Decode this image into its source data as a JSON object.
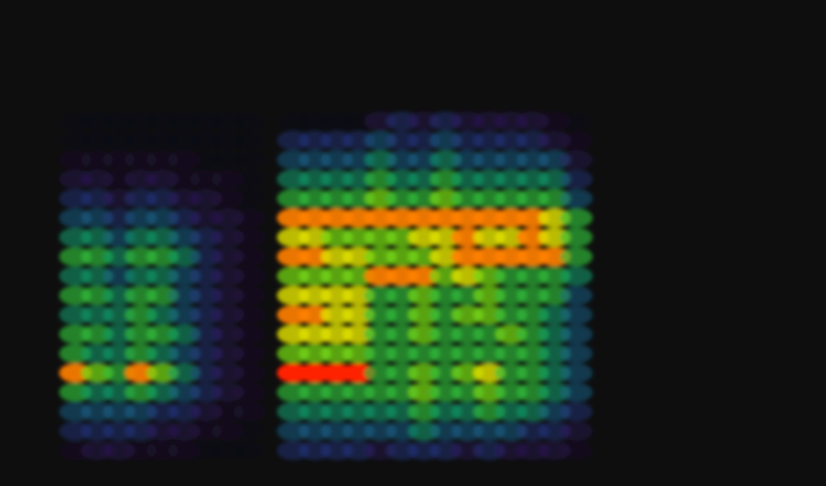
{
  "chart_data": {
    "type": "spectrogram",
    "tick_labels": false,
    "color_range": [
      0,
      10
    ],
    "cells": [
      [
        1,
        2,
        2,
        1,
        1,
        1,
        0,
        0,
        0,
        null,
        3,
        3,
        3,
        3,
        2,
        3,
        3,
        3,
        2,
        3,
        2,
        2,
        2,
        1
      ],
      [
        3,
        3,
        3,
        3,
        2,
        2,
        1,
        1,
        0,
        null,
        4,
        4,
        4,
        4,
        4,
        4,
        5,
        4,
        4,
        4,
        4,
        3,
        3,
        2
      ],
      [
        4,
        4,
        4,
        4,
        3,
        3,
        2,
        1,
        1,
        null,
        5,
        5,
        5,
        5,
        5,
        5,
        6,
        5,
        5,
        6,
        5,
        5,
        4,
        3
      ],
      [
        6,
        5,
        5,
        6,
        5,
        4,
        3,
        2,
        1,
        null,
        6,
        6,
        6,
        6,
        6,
        6,
        7,
        6,
        6,
        7,
        6,
        6,
        5,
        4
      ],
      [
        9,
        7,
        6,
        9,
        7,
        5,
        3,
        2,
        1,
        null,
        10,
        10,
        10,
        10,
        6,
        6,
        7,
        6,
        7,
        8,
        6,
        6,
        5,
        4
      ],
      [
        6,
        5,
        5,
        6,
        5,
        4,
        3,
        2,
        1,
        null,
        7,
        7,
        7,
        7,
        6,
        6,
        6,
        6,
        6,
        6,
        6,
        6,
        5,
        4
      ],
      [
        6,
        6,
        5,
        6,
        6,
        5,
        3,
        2,
        1,
        null,
        8,
        8,
        8,
        8,
        6,
        6,
        7,
        6,
        6,
        6,
        7,
        6,
        5,
        4
      ],
      [
        5,
        5,
        5,
        6,
        5,
        4,
        3,
        2,
        1,
        null,
        9,
        9,
        8,
        8,
        6,
        6,
        7,
        6,
        7,
        7,
        6,
        6,
        5,
        4
      ],
      [
        6,
        6,
        5,
        6,
        6,
        4,
        3,
        2,
        1,
        null,
        8,
        8,
        8,
        8,
        6,
        6,
        7,
        6,
        6,
        7,
        6,
        6,
        6,
        4
      ],
      [
        5,
        5,
        4,
        5,
        5,
        4,
        3,
        2,
        1,
        null,
        7,
        7,
        7,
        7,
        9,
        9,
        9,
        7,
        8,
        7,
        6,
        6,
        6,
        5
      ],
      [
        6,
        6,
        5,
        6,
        6,
        5,
        3,
        2,
        1,
        null,
        9,
        9,
        8,
        8,
        7,
        7,
        7,
        8,
        9,
        9,
        9,
        9,
        9,
        6
      ],
      [
        5,
        5,
        4,
        5,
        5,
        4,
        3,
        2,
        1,
        null,
        8,
        8,
        7,
        7,
        7,
        7,
        8,
        8,
        9,
        8,
        8,
        9,
        8,
        6
      ],
      [
        4,
        4,
        3,
        4,
        4,
        3,
        2,
        2,
        1,
        null,
        9,
        9,
        9,
        9,
        9,
        9,
        9,
        9,
        9,
        9,
        9,
        9,
        8,
        6
      ],
      [
        3,
        3,
        2,
        3,
        3,
        2,
        2,
        1,
        0,
        null,
        6,
        6,
        6,
        6,
        7,
        6,
        6,
        7,
        6,
        6,
        6,
        6,
        6,
        4
      ],
      [
        2,
        2,
        1,
        2,
        2,
        1,
        1,
        1,
        0,
        null,
        5,
        5,
        5,
        5,
        6,
        5,
        5,
        6,
        5,
        5,
        5,
        5,
        5,
        3
      ],
      [
        1,
        1,
        1,
        1,
        1,
        1,
        0,
        0,
        0,
        null,
        4,
        4,
        4,
        4,
        5,
        4,
        4,
        5,
        4,
        4,
        4,
        4,
        4,
        2
      ],
      [
        0,
        0,
        0,
        0,
        0,
        0,
        0,
        0,
        0,
        null,
        3,
        3,
        3,
        3,
        4,
        3,
        3,
        4,
        3,
        3,
        3,
        3,
        2,
        1
      ],
      [
        0,
        0,
        0,
        0,
        0,
        0,
        0,
        0,
        0,
        null,
        0,
        0,
        0,
        0,
        2,
        3,
        2,
        3,
        2,
        2,
        2,
        2,
        1,
        0
      ]
    ]
  }
}
